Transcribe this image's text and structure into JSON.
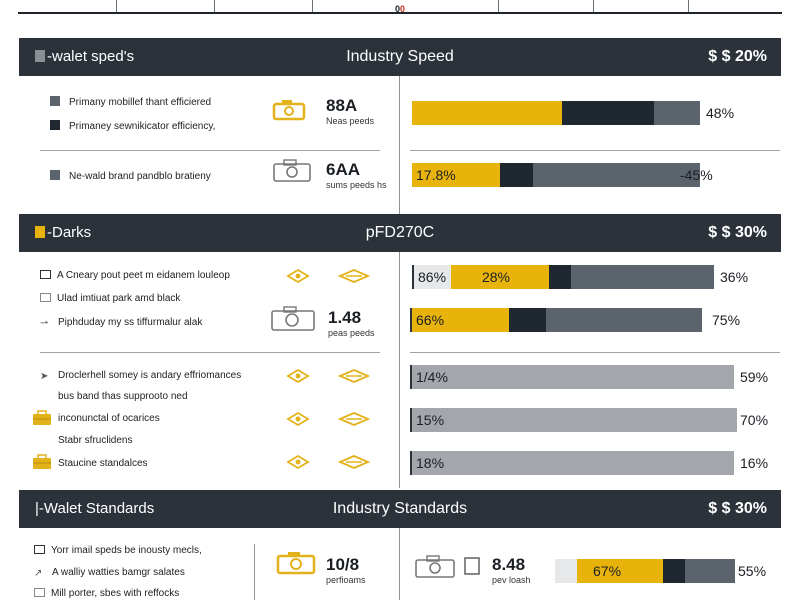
{
  "top": {
    "marker_left": "0",
    "marker_right": "0"
  },
  "colors": {
    "dark": "#2b323a",
    "gold": "#e8b40c",
    "slate": "#5b636c",
    "gray": "#a3a7ac",
    "light": "#e7e8ea",
    "nearblack": "#1f2730",
    "icon": "#e3b21a"
  },
  "sections": [
    {
      "left": "-walet sped's",
      "mid": "Industry Speed",
      "right": "$ $ 20%",
      "legend": [
        "Primany mobillef thant efficiered",
        "Primaney sewnikicator efficiency,",
        "Ne-wald brand pandblo bratieny"
      ],
      "kpis": [
        {
          "big": "88A",
          "small": "Neas peeds"
        },
        {
          "big": "6AA",
          "small": "sums peeds hs"
        }
      ]
    },
    {
      "left": "-Darks",
      "mid": "pFD270C",
      "right": "$ $ 30%",
      "legend": [
        "A Cneary pout peet m eidanem louleop",
        "Ulad imtiuat park amd black",
        "Piphduday my ss tiffurmalur alak"
      ],
      "kpis": [
        {
          "big": "1.48",
          "small": "peas peeds"
        }
      ]
    },
    {
      "legend": [
        "Droclerhell somey is andary effriomances",
        "bus band thas supprooto ned",
        "inconunctal of ocarices",
        "Stabr sfruclidens",
        "Staucine standalces"
      ]
    },
    {
      "left": "|-Walet Standards",
      "mid": "Industry Standards",
      "right": "$ $ 30%",
      "legend": [
        "Yorr imail speds be inousty mecls,",
        "A walliy watties bamgr salates",
        "Mill porter, sbes with reffocks"
      ],
      "kpis": [
        {
          "big": "10/8",
          "small": "perfioams"
        },
        {
          "big": "8.48",
          "small": "pev loash"
        }
      ]
    }
  ],
  "chart_data": {
    "type": "bar",
    "orientation": "horizontal",
    "stacked": true,
    "rows": [
      {
        "label": "",
        "segments": [
          {
            "color": "gold",
            "value": 36
          },
          {
            "color": "nearblack",
            "value": 22
          },
          {
            "color": "slate",
            "value": 11
          }
        ],
        "end_label": "48%"
      },
      {
        "label": "17.8%",
        "segments": [
          {
            "color": "gold",
            "value": 21
          },
          {
            "color": "nearblack",
            "value": 8
          },
          {
            "color": "slate",
            "value": 40
          }
        ],
        "end_label": "-45%"
      },
      {
        "label": "86%",
        "segments": [
          {
            "color": "light",
            "value": 10
          },
          {
            "color": "gold",
            "value": 27
          },
          {
            "color": "nearblack",
            "value": 6
          },
          {
            "color": "slate",
            "value": 39
          }
        ],
        "end_label": "36%"
      },
      {
        "label": "66%",
        "segments": [
          {
            "color": "gold",
            "value": 23
          },
          {
            "color": "nearblack",
            "value": 9
          },
          {
            "color": "slate",
            "value": 37
          }
        ],
        "end_label": "75%"
      },
      {
        "label": "1/4%",
        "segments": [
          {
            "color": "gray",
            "value": 80
          }
        ],
        "end_label": "59%"
      },
      {
        "label": "15%",
        "segments": [
          {
            "color": "gray",
            "value": 81
          }
        ],
        "end_label": "70%"
      },
      {
        "label": "18%",
        "segments": [
          {
            "color": "gray",
            "value": 80
          }
        ],
        "end_label": "16%"
      },
      {
        "label": "67%",
        "segments": [
          {
            "color": "light",
            "value": 12
          },
          {
            "color": "gold",
            "value": 48
          },
          {
            "color": "nearblack",
            "value": 12
          },
          {
            "color": "slate",
            "value": 28
          }
        ],
        "end_label": "55%"
      }
    ],
    "inner_labels": [
      "",
      "",
      "28%",
      "",
      "",
      "",
      "",
      ""
    ],
    "scale_max": 100
  }
}
